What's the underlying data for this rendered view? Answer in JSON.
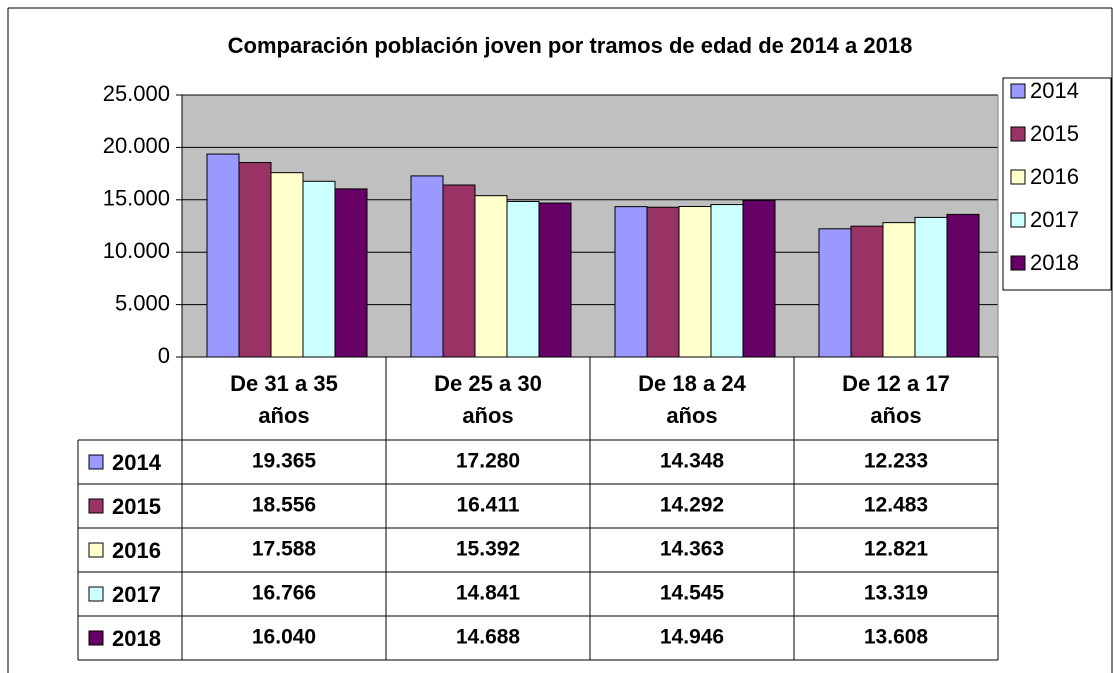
{
  "chart_data": {
    "type": "bar",
    "title": "Comparación población joven por tramos de edad de 2014 a 2018",
    "categories": [
      "De 31 a 35 años",
      "De 25 a 30 años",
      "De 18 a 24 años",
      "De 12 a 17 años"
    ],
    "series": [
      {
        "name": "2014",
        "color": "#9999ff",
        "values": [
          19365,
          17280,
          14348,
          12233
        ],
        "value_labels": [
          "19.365",
          "17.280",
          "14.348",
          "12.233"
        ]
      },
      {
        "name": "2015",
        "color": "#993366",
        "values": [
          18556,
          16411,
          14292,
          12483
        ],
        "value_labels": [
          "18.556",
          "16.411",
          "14.292",
          "12.483"
        ]
      },
      {
        "name": "2016",
        "color": "#ffffcc",
        "values": [
          17588,
          15392,
          14363,
          12821
        ],
        "value_labels": [
          "17.588",
          "15.392",
          "14.363",
          "12.821"
        ]
      },
      {
        "name": "2017",
        "color": "#ccffff",
        "values": [
          16766,
          14841,
          14545,
          13319
        ],
        "value_labels": [
          "16.766",
          "14.841",
          "14.545",
          "13.319"
        ]
      },
      {
        "name": "2018",
        "color": "#660066",
        "values": [
          16040,
          14688,
          14946,
          13608
        ],
        "value_labels": [
          "16.040",
          "14.688",
          "14.946",
          "13.608"
        ]
      }
    ],
    "ylim": [
      0,
      25000
    ],
    "yticks": [
      0,
      {
        "value": 5000,
        "label": "5.000"
      },
      {
        "value": 10000,
        "label": "10.000"
      },
      {
        "value": 15000,
        "label": "15.000"
      },
      {
        "value": 20000,
        "label": "20.000"
      },
      {
        "value": 25000,
        "label": "25.000"
      }
    ],
    "grid": true,
    "legend": "right",
    "data_table": true
  }
}
